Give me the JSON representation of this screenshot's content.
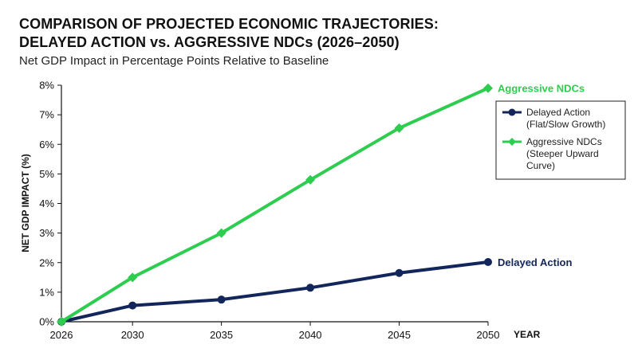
{
  "chart_data": {
    "type": "line",
    "title": [
      "COMPARISON OF PROJECTED ECONOMIC TRAJECTORIES:",
      "DELAYED ACTION vs. AGGRESSIVE NDCs (2026–2050)"
    ],
    "subtitle": "Net GDP Impact in Percentage Points Relative to Baseline",
    "xlabel": "YEAR",
    "ylabel": "NET GDP IMPACT (%)",
    "x": [
      2026,
      2030,
      2035,
      2040,
      2045,
      2050
    ],
    "xlim": [
      2026,
      2050
    ],
    "ylim": [
      0,
      8
    ],
    "yticks": [
      "0%",
      "1%",
      "2%",
      "3%",
      "4%",
      "5%",
      "6%",
      "7%",
      "8%"
    ],
    "grid": false,
    "series": [
      {
        "name": "Delayed Action",
        "end_label": "Delayed Action",
        "legend_lines": [
          "Delayed Action",
          "(Flat/Slow Growth)"
        ],
        "marker": "circle",
        "color": "#13265c",
        "values": [
          0,
          0.55,
          0.75,
          1.15,
          1.65,
          2.02
        ]
      },
      {
        "name": "Aggressive NDCs",
        "end_label": "Aggressive NDCs",
        "legend_lines": [
          "Aggressive NDCs",
          "(Steeper Upward",
          "Curve)"
        ],
        "marker": "diamond",
        "color": "#2ecc4f",
        "values": [
          0,
          1.5,
          3.0,
          4.8,
          6.55,
          7.9
        ]
      }
    ],
    "legend_position": "top-right"
  }
}
